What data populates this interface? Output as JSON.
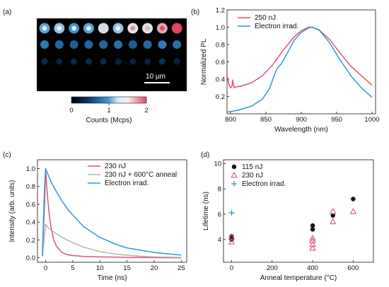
{
  "panel_a": {
    "label": "(a)",
    "scalebar_label": "10 µm",
    "colorbar": {
      "ticks": [
        "0",
        "1",
        "2"
      ],
      "label": "Counts (Mcps)",
      "min": 0,
      "max": 2
    },
    "spot_rows": [
      [
        1.05,
        1.15,
        1.0,
        1.05,
        1.25,
        1.15,
        1.45,
        1.35,
        1.7,
        2.0
      ],
      [
        0.85,
        0.75,
        0.7,
        0.75,
        0.75,
        0.8,
        0.7,
        0.75,
        0.85,
        0.8
      ],
      [
        0.35,
        0.3,
        0.35,
        0.35,
        0.35,
        0.3,
        0.3,
        0.3,
        0.4,
        0.3
      ]
    ]
  },
  "chart_data": [
    {
      "panel": "(b)",
      "type": "line",
      "xlabel": "Wavelength (nm)",
      "ylabel": "Normalized PL",
      "xlim": [
        795,
        1005
      ],
      "ylim": [
        0.0,
        1.2
      ],
      "xticks": [
        800,
        850,
        900,
        950,
        1000
      ],
      "yticks": [
        0.2,
        0.4,
        0.6,
        0.8,
        1.0,
        1.2
      ],
      "legend": "top-right",
      "series": [
        {
          "name": "250 nJ",
          "color": "#e0546e",
          "x": [
            795,
            798,
            800,
            802,
            803,
            804,
            805,
            806,
            808,
            815,
            830,
            845,
            860,
            875,
            890,
            900,
            910,
            915,
            925,
            940,
            955,
            970,
            985,
            1000
          ],
          "y": [
            0.44,
            0.33,
            0.3,
            0.32,
            0.39,
            0.34,
            0.3,
            0.31,
            0.31,
            0.32,
            0.36,
            0.44,
            0.57,
            0.74,
            0.89,
            0.96,
            1.0,
            1.0,
            0.97,
            0.86,
            0.7,
            0.55,
            0.44,
            0.33
          ]
        },
        {
          "name": "Electron irrad.",
          "color": "#2e97dc",
          "x": [
            795,
            810,
            830,
            845,
            855,
            862,
            866,
            872,
            880,
            890,
            900,
            910,
            915,
            925,
            940,
            955,
            970,
            985,
            1000
          ],
          "y": [
            0.02,
            0.04,
            0.09,
            0.17,
            0.29,
            0.45,
            0.53,
            0.58,
            0.7,
            0.85,
            0.94,
            0.99,
            1.0,
            0.97,
            0.82,
            0.62,
            0.44,
            0.3,
            0.19
          ]
        }
      ]
    },
    {
      "panel": "(c)",
      "type": "line",
      "xlabel": "Time (ns)",
      "ylabel": "Intensity (arb. units)",
      "xlim": [
        -1.5,
        26
      ],
      "ylim": [
        -0.05,
        1.1
      ],
      "xticks": [
        0,
        5,
        10,
        15,
        20,
        25
      ],
      "yticks": [
        0.0,
        0.2,
        0.4,
        0.6,
        0.8,
        1.0
      ],
      "legend": "top-right",
      "series": [
        {
          "name": "230 nJ",
          "color": "#e0546e",
          "x": [
            -0.6,
            -0.2,
            0,
            0.3,
            0.6,
            1,
            1.5,
            2,
            3,
            4,
            5,
            7,
            10,
            15,
            25
          ],
          "y": [
            0.02,
            0.6,
            1.0,
            0.72,
            0.52,
            0.34,
            0.2,
            0.13,
            0.06,
            0.035,
            0.025,
            0.015,
            0.01,
            0.005,
            0.0
          ]
        },
        {
          "name": "230 nJ + 600°C anneal",
          "color": "#b3b3b3",
          "x": [
            -0.6,
            -0.2,
            0,
            0.3,
            0.6,
            1,
            2,
            3,
            5,
            7,
            10,
            13,
            17,
            20,
            25
          ],
          "y": [
            0.02,
            0.25,
            0.38,
            0.35,
            0.33,
            0.31,
            0.27,
            0.23,
            0.17,
            0.12,
            0.07,
            0.04,
            0.02,
            0.01,
            0.005
          ]
        },
        {
          "name": "Electron irrad.",
          "color": "#2e97dc",
          "x": [
            -0.6,
            -0.2,
            0,
            1,
            2,
            3,
            4,
            5,
            7,
            10,
            13,
            15,
            20,
            25
          ],
          "y": [
            0.02,
            0.8,
            1.0,
            0.85,
            0.74,
            0.64,
            0.55,
            0.48,
            0.35,
            0.23,
            0.15,
            0.11,
            0.06,
            0.03
          ]
        }
      ]
    },
    {
      "panel": "(d)",
      "type": "scatter",
      "xlabel": "Anneal temperature (°C)",
      "ylabel": "Lifetime (ns)",
      "xlim": [
        -40,
        700
      ],
      "ylim": [
        2.2,
        10.3
      ],
      "xticks": [
        0,
        200,
        400,
        600
      ],
      "yticks": [
        4,
        6,
        8,
        10
      ],
      "legend": "top-left",
      "series": [
        {
          "name": "115 nJ",
          "color": "#111111",
          "marker": "circle",
          "x": [
            0,
            0,
            0,
            0,
            400,
            400,
            500,
            600
          ],
          "y": [
            4.0,
            4.15,
            4.25,
            4.1,
            4.8,
            5.1,
            5.9,
            7.2
          ]
        },
        {
          "name": "230 nJ",
          "color": "#e0546e",
          "marker": "triangle-open",
          "x": [
            0,
            0,
            400,
            400,
            400,
            400,
            500,
            500,
            600
          ],
          "y": [
            3.8,
            4.2,
            3.3,
            3.6,
            3.9,
            4.1,
            5.4,
            6.2,
            6.2
          ]
        },
        {
          "name": "Electron irrad.",
          "color": "#2e97dc",
          "marker": "plus",
          "x": [
            0
          ],
          "y": [
            6.1
          ]
        }
      ]
    }
  ]
}
